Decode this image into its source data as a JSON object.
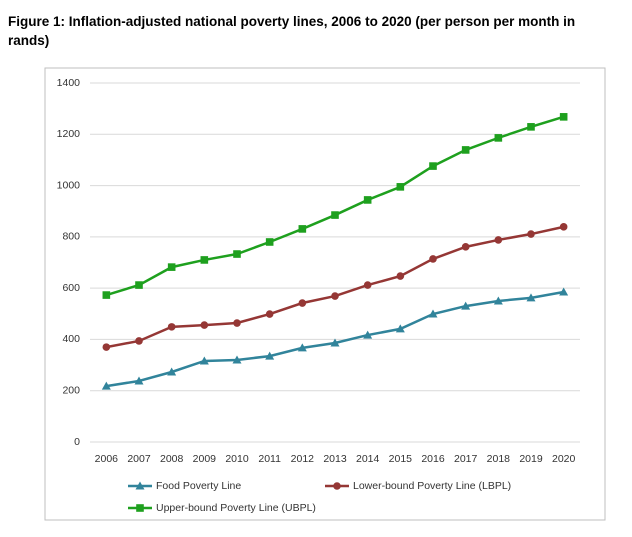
{
  "chart_data": {
    "type": "line",
    "title": "Figure 1: Inflation-adjusted national poverty lines, 2006 to 2020 (per person per month in rands)",
    "categories": [
      "2006",
      "2007",
      "2008",
      "2009",
      "2010",
      "2011",
      "2012",
      "2013",
      "2014",
      "2015",
      "2016",
      "2017",
      "2018",
      "2019",
      "2020"
    ],
    "series": [
      {
        "name": "Food Poverty Line",
        "color": "#31849b",
        "marker": "triangle",
        "values": [
          218,
          238,
          273,
          316,
          320,
          335,
          367,
          386,
          417,
          441,
          499,
          530,
          550,
          562,
          585
        ]
      },
      {
        "name": "Lower-bound Poverty Line (LBPL)",
        "color": "#953735",
        "marker": "circle",
        "values": [
          370,
          394,
          449,
          456,
          464,
          499,
          542,
          569,
          612,
          647,
          714,
          761,
          788,
          811,
          839
        ]
      },
      {
        "name": "Upper-bound Poverty Line (UBPL)",
        "color": "#1ea01e",
        "marker": "square",
        "values": [
          573,
          612,
          682,
          710,
          733,
          780,
          831,
          885,
          944,
          995,
          1076,
          1139,
          1186,
          1229,
          1268
        ]
      }
    ],
    "ylim": [
      0,
      1400
    ],
    "yticks": [
      0,
      200,
      400,
      600,
      800,
      1000,
      1200,
      1400
    ],
    "grid": true
  }
}
